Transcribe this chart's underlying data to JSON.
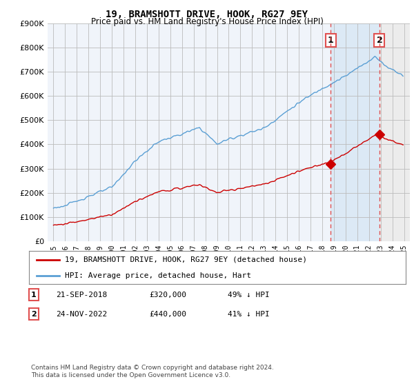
{
  "title": "19, BRAMSHOTT DRIVE, HOOK, RG27 9EY",
  "subtitle": "Price paid vs. HM Land Registry's House Price Index (HPI)",
  "legend_line1": "19, BRAMSHOTT DRIVE, HOOK, RG27 9EY (detached house)",
  "legend_line2": "HPI: Average price, detached house, Hart",
  "transaction1_date": "21-SEP-2018",
  "transaction1_price": "£320,000",
  "transaction1_hpi": "49% ↓ HPI",
  "transaction2_date": "24-NOV-2022",
  "transaction2_price": "£440,000",
  "transaction2_hpi": "41% ↓ HPI",
  "footer": "Contains HM Land Registry data © Crown copyright and database right 2024.\nThis data is licensed under the Open Government Licence v3.0.",
  "hpi_color": "#5a9fd4",
  "price_color": "#cc0000",
  "vline_color": "#e05050",
  "marker1_year": 2018.72,
  "marker1_price": 320000,
  "marker2_year": 2022.9,
  "marker2_price": 440000,
  "ylim_max": 900000,
  "ylim_min": 0,
  "xlim_min": 1994.5,
  "xlim_max": 2025.5,
  "chart_bg": "#f0f4fa",
  "shade_bg": "#dce9f5",
  "right_bg": "#e8e8e8"
}
